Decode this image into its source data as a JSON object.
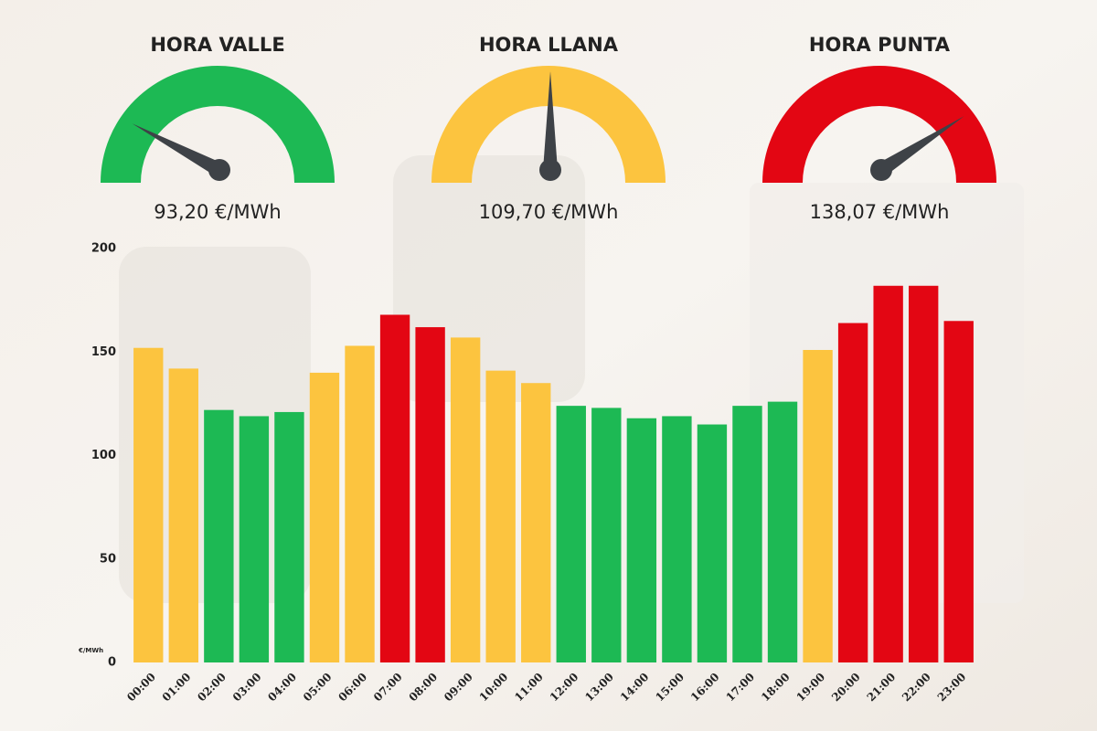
{
  "gauges": [
    {
      "title": "HORA VALLE",
      "label": "93,20 €/MWh",
      "color": "#1db954"
    },
    {
      "title": "HORA LLANA",
      "label": "109,70 €/MWh",
      "color": "#fcc43f"
    },
    {
      "title": "HORA PUNTA",
      "label": "138,07 €/MWh",
      "color": "#e30613"
    }
  ],
  "chart_data": {
    "type": "bar",
    "y_label": "€/MWh",
    "categories": [
      "00:00",
      "01:00",
      "02:00",
      "03:00",
      "04:00",
      "05:00",
      "06:00",
      "07:00",
      "08:00",
      "09:00",
      "10:00",
      "11:00",
      "12:00",
      "13:00",
      "14:00",
      "15:00",
      "16:00",
      "17:00",
      "18:00",
      "19:00",
      "20:00",
      "21:00",
      "22:00",
      "23:00"
    ],
    "values": [
      152,
      142,
      122,
      119,
      121,
      140,
      153,
      168,
      162,
      157,
      141,
      135,
      124,
      123,
      118,
      119,
      115,
      124,
      126,
      151,
      164,
      182,
      182,
      165
    ],
    "colors": [
      "#fcc43f",
      "#fcc43f",
      "#1db954",
      "#1db954",
      "#1db954",
      "#fcc43f",
      "#fcc43f",
      "#e30613",
      "#e30613",
      "#fcc43f",
      "#fcc43f",
      "#fcc43f",
      "#1db954",
      "#1db954",
      "#1db954",
      "#1db954",
      "#1db954",
      "#1db954",
      "#1db954",
      "#fcc43f",
      "#e30613",
      "#e30613",
      "#e30613",
      "#e30613"
    ],
    "ylim": [
      0,
      200
    ],
    "yticks": [
      0,
      50,
      100,
      150,
      200
    ],
    "grid": false
  }
}
